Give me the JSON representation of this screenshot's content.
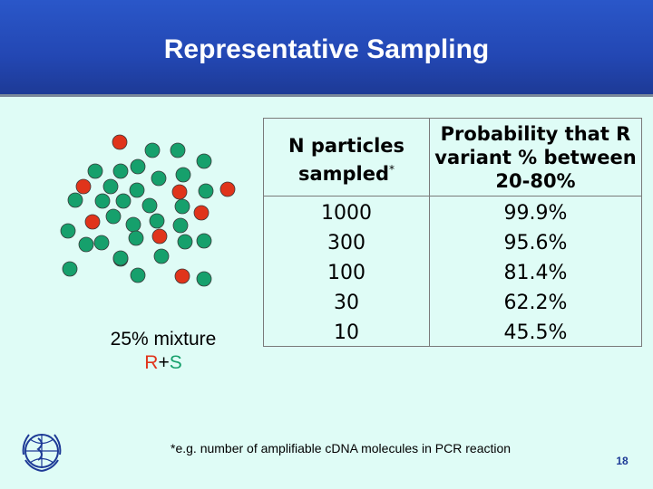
{
  "slide": {
    "title": "Representative Sampling",
    "mixture_label": "25% mixture",
    "mixture_r": "R",
    "mixture_plus": "+",
    "mixture_s": "S",
    "footnote": "*e.g. number of amplifiable cDNA molecules in PCR reaction",
    "page_number": "18"
  },
  "table": {
    "header_n": "N particles sampled",
    "header_n_mark": "*",
    "header_prob": "Probability that R variant % between 20-80%",
    "rows": [
      {
        "n": "1000",
        "p": "99.9%"
      },
      {
        "n": "300",
        "p": "95.6%"
      },
      {
        "n": "100",
        "p": "81.4%"
      },
      {
        "n": "30",
        "p": "62.2%"
      },
      {
        "n": "10",
        "p": "45.5%"
      }
    ]
  },
  "particles": {
    "red_color": "#e0341b",
    "green_color": "#16a06c",
    "total": 39,
    "red_count": 9
  }
}
